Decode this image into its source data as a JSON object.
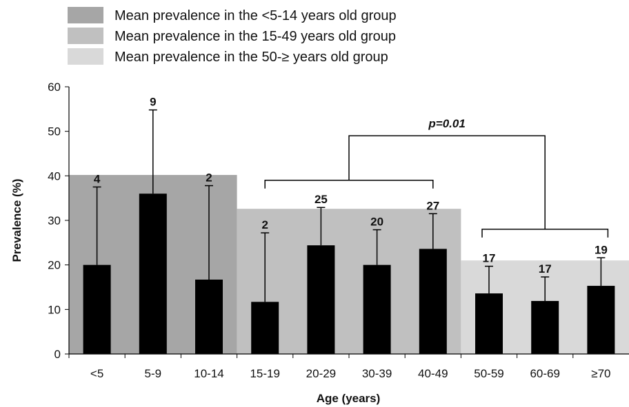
{
  "chart_data": {
    "type": "bar",
    "xlabel": "Age (years)",
    "ylabel": "Prevalence (%)",
    "ylim": [
      0,
      60
    ],
    "yticks": [
      0,
      10,
      20,
      30,
      40,
      50,
      60
    ],
    "categories": [
      "<5",
      "5-9",
      "10-14",
      "15-19",
      "20-29",
      "30-39",
      "40-49",
      "50-59",
      "60-69",
      "≥70"
    ],
    "values": [
      20,
      36,
      16.7,
      11.7,
      24.4,
      20,
      23.6,
      13.6,
      11.9,
      15.3
    ],
    "error_upper": [
      37.5,
      54.8,
      37.8,
      27.2,
      32.9,
      27.9,
      31.5,
      19.7,
      17.3,
      21.6
    ],
    "data_labels": [
      "4",
      "9",
      "2",
      "2",
      "25",
      "20",
      "27",
      "17",
      "17",
      "19"
    ],
    "bar_color": "#000000",
    "group_means": [
      {
        "name": "Mean prevalence in the <5-14 years old group",
        "value": 40.2,
        "from": 0,
        "to": 2,
        "color": "#a6a6a6"
      },
      {
        "name": "Mean prevalence in the 15-49 years old group",
        "value": 32.6,
        "from": 3,
        "to": 6,
        "color": "#c0c0c0"
      },
      {
        "name": "Mean prevalence in the 50-≥ years old group",
        "value": 21,
        "from": 7,
        "to": 9,
        "color": "#d9d9d9"
      }
    ],
    "legend_position": "top-left",
    "annotation": {
      "text": "p=0.01",
      "between_groups": [
        1,
        2
      ]
    }
  }
}
